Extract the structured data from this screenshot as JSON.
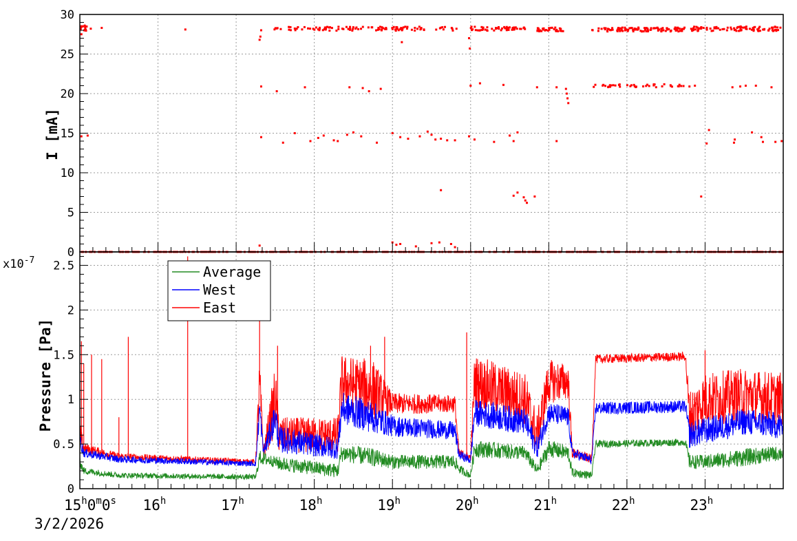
{
  "chart_data": [
    {
      "type": "scatter",
      "ylabel": "I [mA]",
      "ylim": [
        0,
        30
      ],
      "y_ticks": [
        "0",
        "5",
        "10",
        "15",
        "20",
        "25",
        "30"
      ],
      "x_hour_labels": [
        "15",
        "16",
        "17",
        "18",
        "19",
        "20",
        "21",
        "22",
        "23"
      ],
      "xlim_hours": [
        15.0,
        24.0
      ],
      "grid": true,
      "series": [
        {
          "color": "#ff0000",
          "segments": [
            {
              "x0": 15.0,
              "x1": 15.1,
              "level": 28.2,
              "spread": 0.4,
              "density": 12
            },
            {
              "x0": 17.47,
              "x1": 19.83,
              "level": 28.2,
              "spread": 0.25,
              "density": 110
            },
            {
              "x0": 19.98,
              "x1": 20.7,
              "level": 28.2,
              "spread": 0.25,
              "density": 50
            },
            {
              "x0": 20.85,
              "x1": 21.22,
              "level": 28.1,
              "spread": 0.25,
              "density": 30
            },
            {
              "x0": 21.55,
              "x1": 22.75,
              "level": 28.1,
              "spread": 0.25,
              "density": 110
            },
            {
              "x0": 22.82,
              "x1": 24.0,
              "level": 28.2,
              "spread": 0.3,
              "density": 90
            },
            {
              "x0": 21.55,
              "x1": 22.75,
              "level": 21.0,
              "spread": 0.2,
              "density": 40
            },
            {
              "x0": 15.0,
              "x1": 24.0,
              "level": 0.0,
              "spread": 0.0,
              "density": 400
            }
          ],
          "points": [
            [
              15.02,
              27.5
            ],
            [
              15.04,
              28.5
            ],
            [
              15.14,
              28.2
            ],
            [
              15.28,
              28.3
            ],
            [
              16.35,
              28.1
            ],
            [
              17.3,
              26.8
            ],
            [
              17.31,
              27.2
            ],
            [
              17.32,
              28.0
            ],
            [
              17.3,
              0.8
            ],
            [
              19.0,
              1.2
            ],
            [
              19.05,
              0.9
            ],
            [
              19.1,
              1.0
            ],
            [
              19.3,
              0.7
            ],
            [
              19.5,
              1.1
            ],
            [
              19.6,
              1.2
            ],
            [
              19.75,
              1.0
            ],
            [
              19.8,
              0.6
            ],
            [
              19.98,
              27.0
            ],
            [
              19.99,
              25.7
            ],
            [
              19.12,
              26.5
            ],
            [
              17.32,
              20.9
            ],
            [
              17.52,
              20.3
            ],
            [
              17.88,
              20.8
            ],
            [
              18.45,
              20.8
            ],
            [
              18.62,
              20.7
            ],
            [
              18.7,
              20.3
            ],
            [
              18.85,
              20.6
            ],
            [
              20.0,
              21.0
            ],
            [
              20.12,
              21.3
            ],
            [
              20.42,
              21.1
            ],
            [
              20.85,
              20.8
            ],
            [
              21.1,
              20.8
            ],
            [
              21.22,
              20.6
            ],
            [
              21.23,
              20.0
            ],
            [
              21.24,
              19.4
            ],
            [
              21.25,
              18.8
            ],
            [
              22.8,
              20.9
            ],
            [
              22.87,
              21.0
            ],
            [
              23.35,
              20.8
            ],
            [
              23.45,
              20.9
            ],
            [
              23.52,
              21.0
            ],
            [
              23.65,
              21.0
            ],
            [
              23.85,
              20.8
            ],
            [
              15.02,
              14.6
            ],
            [
              15.1,
              14.7
            ],
            [
              17.32,
              14.5
            ],
            [
              17.6,
              13.8
            ],
            [
              17.75,
              15.0
            ],
            [
              17.95,
              14.0
            ],
            [
              18.05,
              14.4
            ],
            [
              18.12,
              14.7
            ],
            [
              18.25,
              14.1
            ],
            [
              18.3,
              14.0
            ],
            [
              18.42,
              14.8
            ],
            [
              18.5,
              15.1
            ],
            [
              18.6,
              14.6
            ],
            [
              18.8,
              13.8
            ],
            [
              19.0,
              15.0
            ],
            [
              19.1,
              14.5
            ],
            [
              19.2,
              14.3
            ],
            [
              19.35,
              14.6
            ],
            [
              19.45,
              15.2
            ],
            [
              19.5,
              14.8
            ],
            [
              19.55,
              14.2
            ],
            [
              19.62,
              14.3
            ],
            [
              19.7,
              14.1
            ],
            [
              19.8,
              14.1
            ],
            [
              19.98,
              14.6
            ],
            [
              20.05,
              14.2
            ],
            [
              20.3,
              13.9
            ],
            [
              20.5,
              14.7
            ],
            [
              20.55,
              14.0
            ],
            [
              20.6,
              15.1
            ],
            [
              21.1,
              14.0
            ],
            [
              23.05,
              15.4
            ],
            [
              23.02,
              13.7
            ],
            [
              23.37,
              13.8
            ],
            [
              23.38,
              14.2
            ],
            [
              23.6,
              15.1
            ],
            [
              23.72,
              14.5
            ],
            [
              23.74,
              13.9
            ],
            [
              23.9,
              13.9
            ],
            [
              23.98,
              14.0
            ],
            [
              19.62,
              7.8
            ],
            [
              20.55,
              7.1
            ],
            [
              20.6,
              7.5
            ],
            [
              20.68,
              6.9
            ],
            [
              20.7,
              6.5
            ],
            [
              20.72,
              6.2
            ],
            [
              20.82,
              7.0
            ],
            [
              22.95,
              7.0
            ]
          ]
        }
      ]
    },
    {
      "type": "line",
      "ylabel": "Pressure [Pa]",
      "y_exponent": "x10",
      "y_exponent_power": "-7",
      "ylim": [
        0,
        2.65
      ],
      "y_ticks": [
        "0",
        "0.5",
        "1",
        "1.5",
        "2",
        "2.5"
      ],
      "x_hour_labels": [
        "15",
        "16",
        "17",
        "18",
        "19",
        "20",
        "21",
        "22",
        "23"
      ],
      "xlim_hours": [
        15.0,
        24.0
      ],
      "x_origin_label": {
        "h": "15",
        "m": "0",
        "s": "0"
      },
      "date": "3/2/2026",
      "grid": true,
      "legend": "top-left",
      "series": [
        {
          "name": "Average",
          "color": "#228b22",
          "profile": [
            [
              15.0,
              0.3,
              0.05
            ],
            [
              15.05,
              0.2,
              0.04
            ],
            [
              15.5,
              0.15,
              0.03
            ],
            [
              17.25,
              0.13,
              0.03
            ],
            [
              17.3,
              0.35,
              0.08
            ],
            [
              17.5,
              0.3,
              0.06
            ],
            [
              17.55,
              0.28,
              0.08
            ],
            [
              18.3,
              0.2,
              0.08
            ],
            [
              18.35,
              0.4,
              0.1
            ],
            [
              18.75,
              0.35,
              0.1
            ],
            [
              19.0,
              0.3,
              0.08
            ],
            [
              19.8,
              0.3,
              0.08
            ],
            [
              19.85,
              0.22,
              0.05
            ],
            [
              20.0,
              0.15,
              0.04
            ],
            [
              20.05,
              0.45,
              0.1
            ],
            [
              20.7,
              0.4,
              0.08
            ],
            [
              20.85,
              0.2,
              0.06
            ],
            [
              21.0,
              0.45,
              0.1
            ],
            [
              21.25,
              0.4,
              0.08
            ],
            [
              21.3,
              0.18,
              0.05
            ],
            [
              21.55,
              0.15,
              0.04
            ],
            [
              21.6,
              0.5,
              0.04
            ],
            [
              22.75,
              0.52,
              0.04
            ],
            [
              22.8,
              0.3,
              0.08
            ],
            [
              23.0,
              0.3,
              0.08
            ],
            [
              23.5,
              0.35,
              0.1
            ],
            [
              24.0,
              0.4,
              0.08
            ]
          ]
        },
        {
          "name": "West",
          "color": "#0000ff",
          "profile": [
            [
              15.0,
              0.55,
              0.1
            ],
            [
              15.05,
              0.4,
              0.05
            ],
            [
              15.5,
              0.33,
              0.04
            ],
            [
              17.25,
              0.28,
              0.03
            ],
            [
              17.3,
              0.9,
              0.15
            ],
            [
              17.35,
              0.4,
              0.08
            ],
            [
              17.5,
              0.8,
              0.18
            ],
            [
              17.55,
              0.55,
              0.15
            ],
            [
              18.3,
              0.45,
              0.12
            ],
            [
              18.35,
              0.9,
              0.18
            ],
            [
              18.75,
              0.8,
              0.18
            ],
            [
              19.0,
              0.7,
              0.12
            ],
            [
              19.8,
              0.65,
              0.1
            ],
            [
              19.85,
              0.38,
              0.05
            ],
            [
              20.0,
              0.32,
              0.05
            ],
            [
              20.05,
              0.85,
              0.15
            ],
            [
              20.7,
              0.75,
              0.15
            ],
            [
              20.85,
              0.45,
              0.12
            ],
            [
              21.0,
              0.85,
              0.12
            ],
            [
              21.25,
              0.8,
              0.12
            ],
            [
              21.3,
              0.4,
              0.06
            ],
            [
              21.55,
              0.32,
              0.05
            ],
            [
              21.6,
              0.9,
              0.07
            ],
            [
              22.75,
              0.92,
              0.07
            ],
            [
              22.8,
              0.6,
              0.15
            ],
            [
              23.0,
              0.65,
              0.15
            ],
            [
              23.5,
              0.75,
              0.15
            ],
            [
              24.0,
              0.7,
              0.15
            ]
          ]
        },
        {
          "name": "East",
          "color": "#ff0000",
          "profile": [
            [
              15.0,
              0.6,
              0.15
            ],
            [
              15.05,
              0.45,
              0.06
            ],
            [
              15.5,
              0.36,
              0.04
            ],
            [
              17.25,
              0.3,
              0.03
            ],
            [
              17.3,
              1.2,
              0.3
            ],
            [
              17.35,
              0.4,
              0.08
            ],
            [
              17.5,
              1.0,
              0.4
            ],
            [
              17.55,
              0.6,
              0.2
            ],
            [
              18.3,
              0.6,
              0.2
            ],
            [
              18.35,
              1.2,
              0.3
            ],
            [
              18.75,
              1.1,
              0.35
            ],
            [
              19.0,
              0.95,
              0.12
            ],
            [
              19.8,
              0.95,
              0.1
            ],
            [
              19.85,
              0.4,
              0.05
            ],
            [
              20.0,
              0.35,
              0.05
            ],
            [
              20.05,
              1.2,
              0.3
            ],
            [
              20.7,
              1.0,
              0.3
            ],
            [
              20.85,
              0.6,
              0.25
            ],
            [
              21.0,
              1.2,
              0.25
            ],
            [
              21.25,
              1.2,
              0.2
            ],
            [
              21.3,
              0.4,
              0.06
            ],
            [
              21.55,
              0.33,
              0.05
            ],
            [
              21.6,
              1.45,
              0.05
            ],
            [
              22.75,
              1.48,
              0.05
            ],
            [
              22.8,
              0.8,
              0.3
            ],
            [
              23.0,
              1.0,
              0.3
            ],
            [
              23.5,
              1.05,
              0.3
            ],
            [
              24.0,
              1.0,
              0.3
            ]
          ],
          "spikes": [
            [
              15.02,
              1.65
            ],
            [
              15.05,
              1.4
            ],
            [
              15.15,
              1.5
            ],
            [
              15.28,
              1.45
            ],
            [
              15.5,
              0.8
            ],
            [
              15.62,
              1.7
            ],
            [
              16.38,
              2.6
            ],
            [
              17.3,
              1.95
            ],
            [
              17.53,
              1.6
            ],
            [
              18.72,
              1.6
            ],
            [
              18.9,
              1.7
            ],
            [
              19.95,
              1.75
            ],
            [
              23.0,
              1.55
            ]
          ]
        }
      ]
    }
  ]
}
